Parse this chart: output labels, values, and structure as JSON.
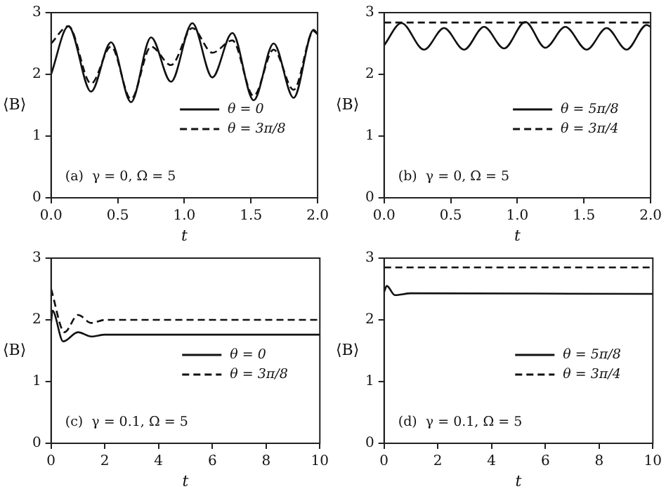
{
  "chart_data": [
    {
      "type": "line",
      "xlabel": "t",
      "ylabel": "⟨B⟩",
      "xlim": [
        0,
        2
      ],
      "xticks": [
        {
          "value": 0,
          "label": "0.0"
        },
        {
          "value": 0.5,
          "label": "0.5"
        },
        {
          "value": 1,
          "label": "1.0"
        },
        {
          "value": 1.5,
          "label": "1.5"
        },
        {
          "value": 2,
          "label": "2.0"
        }
      ],
      "ylim": [
        0,
        3
      ],
      "yticks": [
        0,
        1,
        2,
        3
      ],
      "grid": false,
      "legend": "right",
      "marker": "none",
      "annotations": [
        "(a)  γ = 0, Ω = 5"
      ],
      "series": [
        {
          "name": "θ = 0",
          "color": "#111111",
          "line_style": "solid",
          "x": [
            0,
            0.13,
            0.3,
            0.45,
            0.6,
            0.75,
            0.9,
            1.06,
            1.21,
            1.36,
            1.52,
            1.67,
            1.82,
            1.97,
            2.0
          ],
          "values": [
            2.0,
            2.78,
            1.72,
            2.52,
            1.55,
            2.6,
            1.88,
            2.83,
            1.95,
            2.67,
            1.58,
            2.5,
            1.62,
            2.72,
            2.65
          ]
        },
        {
          "name": "θ = 3π/8",
          "color": "#111111",
          "line_style": "dashed",
          "x": [
            0,
            0.13,
            0.3,
            0.45,
            0.6,
            0.75,
            0.9,
            1.06,
            1.21,
            1.36,
            1.52,
            1.67,
            1.82,
            1.97,
            2.0
          ],
          "values": [
            2.5,
            2.78,
            1.85,
            2.45,
            1.6,
            2.45,
            2.15,
            2.75,
            2.35,
            2.55,
            1.65,
            2.4,
            1.75,
            2.7,
            2.65
          ]
        }
      ]
    },
    {
      "type": "line",
      "xlabel": "t",
      "ylabel": "⟨B⟩",
      "xlim": [
        0,
        2
      ],
      "xticks": [
        {
          "value": 0,
          "label": "0.0"
        },
        {
          "value": 0.5,
          "label": "0.5"
        },
        {
          "value": 1,
          "label": "1.0"
        },
        {
          "value": 1.5,
          "label": "1.5"
        },
        {
          "value": 2,
          "label": "2.0"
        }
      ],
      "ylim": [
        0,
        3
      ],
      "yticks": [
        0,
        1,
        2,
        3
      ],
      "grid": false,
      "legend": "right",
      "marker": "none",
      "annotations": [
        "(b)  γ = 0, Ω = 5"
      ],
      "series": [
        {
          "name": "θ = 5π/8",
          "color": "#111111",
          "line_style": "solid",
          "x": [
            0,
            0.13,
            0.3,
            0.45,
            0.6,
            0.75,
            0.9,
            1.06,
            1.21,
            1.36,
            1.52,
            1.67,
            1.82,
            1.97,
            2.0
          ],
          "values": [
            2.47,
            2.83,
            2.4,
            2.75,
            2.4,
            2.77,
            2.42,
            2.85,
            2.43,
            2.77,
            2.4,
            2.75,
            2.4,
            2.8,
            2.77
          ]
        },
        {
          "name": "θ = 3π/4",
          "color": "#111111",
          "line_style": "dashed",
          "x": [
            0,
            2
          ],
          "values": [
            2.84,
            2.84
          ]
        }
      ]
    },
    {
      "type": "line",
      "xlabel": "t",
      "ylabel": "⟨B⟩",
      "xlim": [
        0,
        10
      ],
      "xticks": [
        0,
        2,
        4,
        6,
        8,
        10
      ],
      "ylim": [
        0,
        3
      ],
      "yticks": [
        0,
        1,
        2,
        3
      ],
      "grid": false,
      "legend": "right",
      "marker": "none",
      "annotations": [
        "(c)  γ = 0.1, Ω = 5"
      ],
      "series": [
        {
          "name": "θ = 0",
          "color": "#111111",
          "line_style": "solid",
          "x": [
            0,
            0.05,
            0.45,
            1.0,
            1.5,
            2,
            10
          ],
          "values": [
            1.95,
            2.15,
            1.65,
            1.8,
            1.73,
            1.76,
            1.76
          ]
        },
        {
          "name": "θ = 3π/8",
          "color": "#111111",
          "line_style": "dashed",
          "x": [
            0,
            0.5,
            1.0,
            1.5,
            2,
            10
          ],
          "values": [
            2.5,
            1.8,
            2.08,
            1.95,
            2.0,
            2.0
          ]
        }
      ]
    },
    {
      "type": "line",
      "xlabel": "t",
      "ylabel": "⟨B⟩",
      "xlim": [
        0,
        10
      ],
      "xticks": [
        0,
        2,
        4,
        6,
        8,
        10
      ],
      "ylim": [
        0,
        3
      ],
      "yticks": [
        0,
        1,
        2,
        3
      ],
      "grid": false,
      "legend": "right",
      "marker": "none",
      "annotations": [
        "(d)  γ = 0.1, Ω = 5"
      ],
      "series": [
        {
          "name": "θ = 5π/8",
          "color": "#111111",
          "line_style": "solid",
          "x": [
            0,
            0.1,
            0.4,
            1.0,
            10
          ],
          "values": [
            2.45,
            2.55,
            2.4,
            2.43,
            2.42
          ]
        },
        {
          "name": "θ = 3π/4",
          "color": "#111111",
          "line_style": "dashed",
          "x": [
            0,
            10
          ],
          "values": [
            2.85,
            2.85
          ]
        }
      ]
    }
  ]
}
